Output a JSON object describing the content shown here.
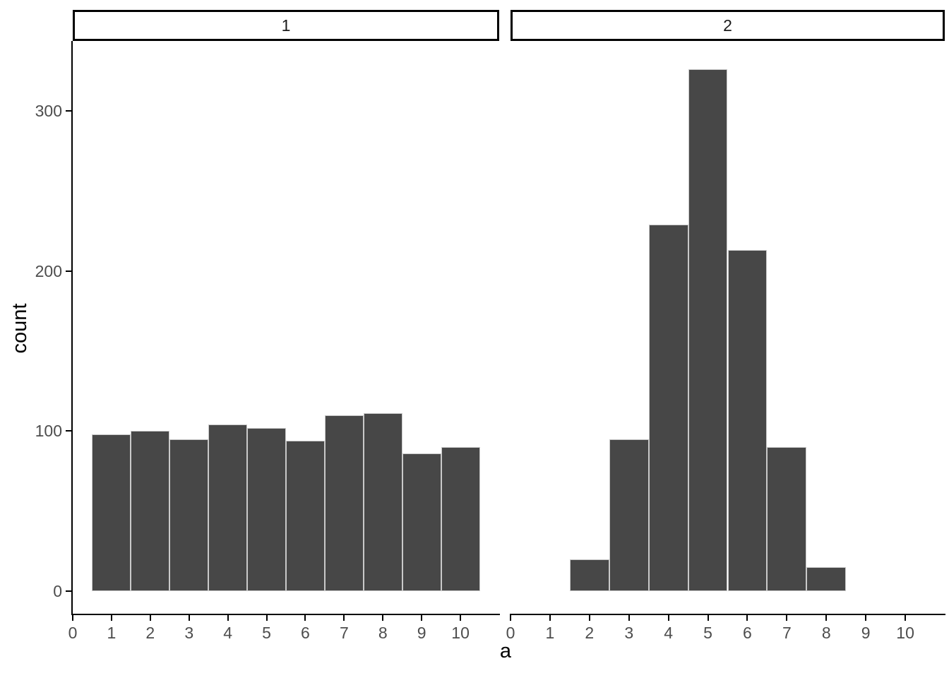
{
  "chart_data": {
    "type": "histogram",
    "title": "",
    "xlabel": "a",
    "ylabel": "count",
    "binwidth": 1,
    "grid": "off",
    "legend_position": "none",
    "faceting": {
      "variable_values": [
        "1",
        "2"
      ],
      "layout": "one-row facet_wrap"
    },
    "x_axis": {
      "ticks": [
        0,
        1,
        2,
        3,
        4,
        5,
        6,
        7,
        8,
        9,
        10
      ],
      "domain": [
        0,
        11
      ]
    },
    "y_axis": {
      "ticks": [
        0,
        100,
        200,
        300
      ],
      "ylim": [
        0,
        343
      ]
    },
    "facets": [
      {
        "label": "1",
        "bin_centers": [
          1,
          2,
          3,
          4,
          5,
          6,
          7,
          8,
          9,
          10
        ],
        "counts": [
          98,
          100,
          95,
          104,
          102,
          94,
          110,
          111,
          86,
          90
        ]
      },
      {
        "label": "2",
        "bin_centers": [
          2,
          3,
          4,
          5,
          6,
          7,
          8
        ],
        "counts": [
          20,
          95,
          229,
          326,
          213,
          90,
          15
        ]
      }
    ],
    "style": {
      "bar_fill": "#474747",
      "bar_border": "#c9c9c9",
      "axis_line_color": "#000000",
      "tick_label_color": "#4d4d4d",
      "axis_title_color": "#000000",
      "strip_background": "#ffffff",
      "strip_border": "#000000",
      "background": "#ffffff"
    }
  }
}
